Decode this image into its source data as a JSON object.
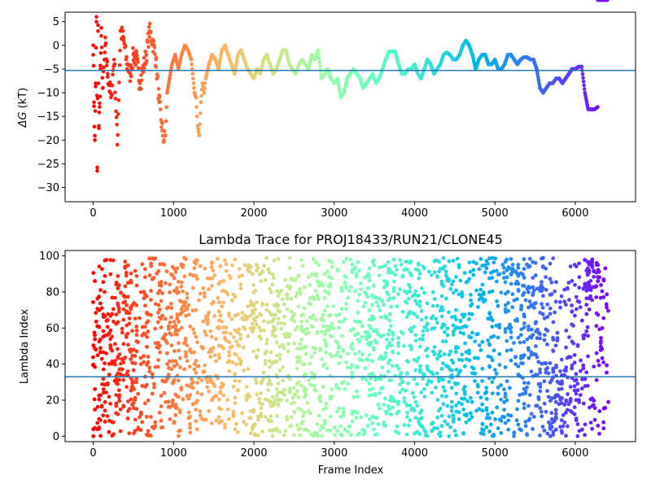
{
  "chart_data": [
    {
      "type": "scatter",
      "title": "",
      "xlabel": "",
      "ylabel": "ΔG (kT)",
      "ylabel_math_symbol": "ΔG",
      "ylabel_unit": "(kT)",
      "xlim": [
        -350,
        6750
      ],
      "ylim": [
        -33,
        7
      ],
      "xticks": [
        0,
        1000,
        2000,
        3000,
        4000,
        5000,
        6000
      ],
      "yticks": [
        5,
        0,
        -5,
        -10,
        -15,
        -20,
        -25,
        -30
      ],
      "colormap": "rainbow (red → violet with frame index)",
      "hline": -5.3,
      "hline_color": "#1f77b4",
      "points_x": [
        0,
        10,
        20,
        30,
        40,
        50,
        60,
        70,
        80,
        90,
        100,
        120,
        150,
        180,
        220,
        260,
        300,
        340,
        380,
        420,
        460,
        500,
        540,
        580,
        620,
        660,
        700,
        740,
        780,
        820,
        860,
        880,
        900,
        920,
        950,
        980,
        1020,
        1060,
        1100,
        1140,
        1180,
        1220,
        1260,
        1280,
        1300,
        1320,
        1340,
        1360,
        1380,
        1400,
        1440,
        1480,
        1520,
        1560,
        1600,
        1640,
        1680,
        1720,
        1760,
        1800,
        1840,
        1880,
        1920,
        1960,
        2000,
        2040,
        2080,
        2120,
        2160,
        2200,
        2240,
        2280,
        2320,
        2360,
        2400,
        2440,
        2480,
        2520,
        2560,
        2600,
        2640,
        2680,
        2720,
        2760,
        2800,
        2840,
        2880,
        2920,
        2960,
        3000,
        3040,
        3080,
        3120,
        3160,
        3200,
        3240,
        3280,
        3320,
        3360,
        3400,
        3440,
        3480,
        3520,
        3560,
        3600,
        3640,
        3680,
        3720,
        3760,
        3800,
        3840,
        3880,
        3920,
        3960,
        4000,
        4040,
        4080,
        4120,
        4160,
        4200,
        4240,
        4280,
        4320,
        4360,
        4400,
        4440,
        4480,
        4520,
        4560,
        4600,
        4640,
        4680,
        4720,
        4760,
        4800,
        4840,
        4880,
        4920,
        4960,
        5000,
        5040,
        5080,
        5120,
        5160,
        5200,
        5240,
        5280,
        5320,
        5360,
        5400,
        5440,
        5480,
        5520,
        5560,
        5600,
        5640,
        5680,
        5720,
        5760,
        5800,
        5840,
        5880,
        5920,
        5960,
        6000,
        6040,
        6080,
        6120,
        6160,
        6200,
        6240,
        6280,
        6320,
        6360,
        6400
      ],
      "points_y": [
        0,
        -12,
        -20,
        -8,
        5,
        -26.5,
        3,
        -17,
        -13,
        -5,
        2,
        -9,
        0,
        -6,
        -11,
        -3,
        -21,
        3,
        1,
        -4,
        -6,
        -2,
        -3,
        -8,
        -5,
        -2,
        3,
        1,
        -3,
        -12,
        -18,
        -20,
        -19,
        -10,
        -7,
        -4,
        -2,
        -5,
        -2,
        0,
        -1,
        -3,
        -10,
        -11,
        -17,
        -19,
        -12,
        -8,
        -10,
        -7,
        -4,
        -2,
        -3,
        -5,
        -1,
        0,
        -2,
        -4,
        -6,
        -2,
        -1,
        -3,
        -5,
        -6,
        -7,
        -5,
        -6,
        -3,
        -2,
        -4,
        -6,
        -5,
        -3,
        -1,
        -1,
        -4,
        -5,
        -6,
        -4,
        -3,
        -4,
        -5,
        -2,
        -3,
        -1,
        -7,
        -6,
        -5,
        -7,
        -8,
        -7,
        -11,
        -10,
        -7,
        -6,
        -5,
        -6,
        -7,
        -9,
        -8,
        -7,
        -6,
        -8,
        -7,
        -5,
        -3,
        -1.3,
        -1.3,
        -1.3,
        -4,
        -6,
        -6,
        -5,
        -5,
        -4,
        -6,
        -7,
        -5,
        -3,
        -4,
        -6,
        -5,
        -4,
        -2,
        -1.5,
        -2,
        -3,
        -3,
        -2,
        0,
        1,
        0,
        -2,
        -5,
        -3,
        -2,
        -2,
        -4,
        -4,
        -3,
        -5,
        -5,
        -4,
        -2,
        -2,
        -3,
        -4,
        -3,
        -2.5,
        -2.5,
        -3,
        -3,
        -5,
        -9,
        -10,
        -9,
        -8,
        -8,
        -7,
        -7,
        -8,
        -7,
        -6,
        -5,
        -5,
        -4.5,
        -4.5,
        -10,
        -13.5,
        -13.5,
        -13.5,
        -13
      ]
    },
    {
      "type": "scatter",
      "title": "Lambda Trace for PROJ18433/RUN21/CLONE45",
      "xlabel": "Frame Index",
      "ylabel": "Lambda Index",
      "xlim": [
        -350,
        6750
      ],
      "ylim": [
        -3,
        103
      ],
      "xticks": [
        0,
        1000,
        2000,
        3000,
        4000,
        5000,
        6000
      ],
      "yticks": [
        0,
        20,
        40,
        60,
        80,
        100
      ],
      "colormap": "rainbow (red → violet with frame index)",
      "hline": 33,
      "hline_color": "#1f77b4",
      "lambda_range": [
        0,
        99
      ],
      "frame_range": [
        0,
        6400
      ],
      "dense_bands_x": [
        0,
        500,
        1000,
        1800,
        2100,
        2700,
        3300,
        3900,
        4500,
        5200,
        5500,
        5700,
        5900,
        6100,
        6350
      ]
    }
  ]
}
